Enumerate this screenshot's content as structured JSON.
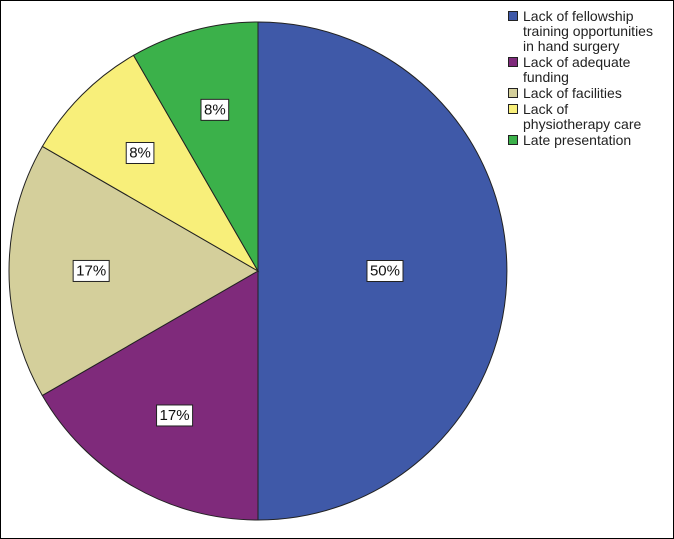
{
  "chart_data": {
    "type": "pie",
    "title": "",
    "start_angle_deg": 0,
    "direction": "clockwise",
    "slices": [
      {
        "label": "Lack of fellowship training opportunities in hand surgery",
        "value": 50,
        "display": "50%",
        "color": "#3f59a8"
      },
      {
        "label": "Lack of adequate funding",
        "value": 16.67,
        "display": "17%",
        "color": "#7f2a7b"
      },
      {
        "label": "Lack of facilities",
        "value": 16.67,
        "display": "17%",
        "color": "#d4cf9b"
      },
      {
        "label": "Lack of physiotherapy care",
        "value": 8.33,
        "display": "8%",
        "color": "#f8ef7a"
      },
      {
        "label": "Late presentation",
        "value": 8.33,
        "display": "8%",
        "color": "#3bb14a"
      }
    ],
    "legend": {
      "position": "top-right",
      "lines": [
        [
          "Lack of fellowship",
          "training opportunities",
          "in hand surgery"
        ],
        [
          "Lack of adequate",
          "funding"
        ],
        [
          "Lack of facilities"
        ],
        [
          "Lack of",
          "physiotherapy care"
        ],
        [
          "Late presentation"
        ]
      ]
    }
  }
}
